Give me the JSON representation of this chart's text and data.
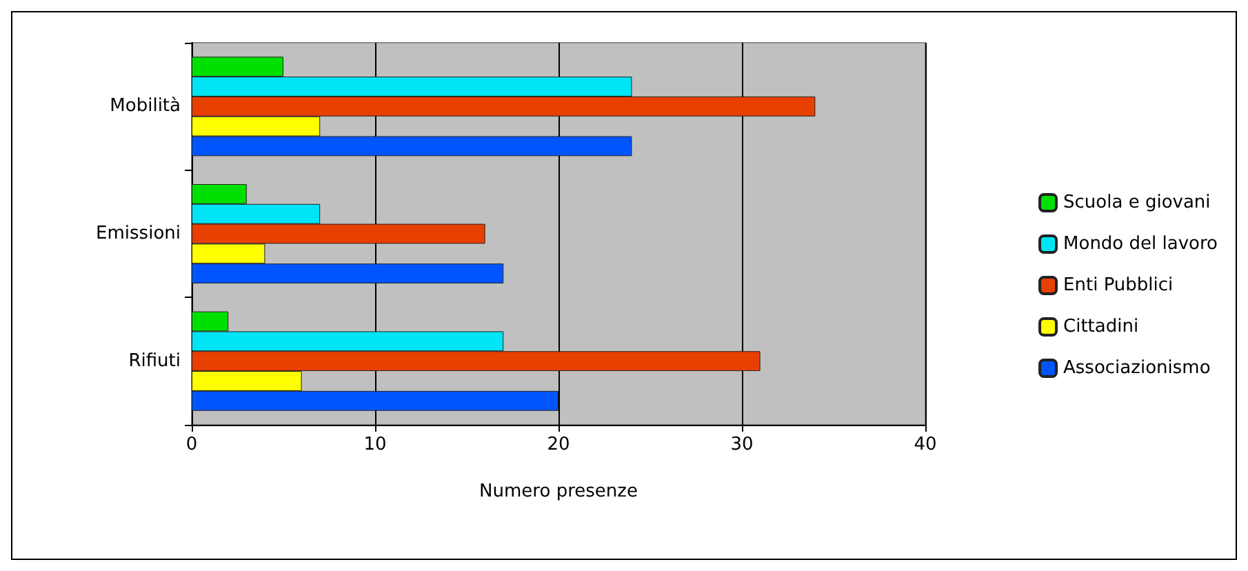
{
  "chart_data": {
    "type": "bar",
    "orientation": "horizontal",
    "xlabel": "Numero presenze",
    "categories": [
      "Mobilità",
      "Emissioni",
      "Rifiuti"
    ],
    "series": [
      {
        "name": "Scuola e giovani",
        "color": "#00e000",
        "values": [
          5,
          3,
          2
        ]
      },
      {
        "name": "Mondo del lavoro",
        "color": "#00e5f5",
        "values": [
          24,
          7,
          17
        ]
      },
      {
        "name": "Enti Pubblici",
        "color": "#e84000",
        "values": [
          34,
          16,
          31
        ]
      },
      {
        "name": "Cittadini",
        "color": "#ffff00",
        "values": [
          7,
          4,
          6
        ]
      },
      {
        "name": "Associazionismo",
        "color": "#0055ff",
        "values": [
          24,
          17,
          20
        ]
      }
    ],
    "xlim": [
      0,
      40
    ],
    "xticks": [
      0,
      10,
      20,
      30,
      40
    ],
    "grid": "x",
    "legend": "right"
  }
}
